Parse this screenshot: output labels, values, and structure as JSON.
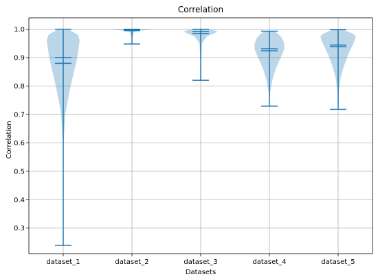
{
  "chart_data": {
    "type": "violin",
    "title": "Correlation",
    "xlabel": "Datasets",
    "ylabel": "Correlation",
    "ylim": [
      0.21,
      1.04
    ],
    "yticks": [
      0.3,
      0.4,
      0.5,
      0.6,
      0.7,
      0.8,
      0.9,
      1.0
    ],
    "ytick_labels": [
      "0.3",
      "0.4",
      "0.5",
      "0.6",
      "0.7",
      "0.8",
      "0.9",
      "1.0"
    ],
    "grid": true,
    "body_color": "#1f77b4",
    "line_color": "#1f77b4",
    "categories": [
      "dataset_1",
      "dataset_2",
      "dataset_3",
      "dataset_4",
      "dataset_5"
    ],
    "series": [
      {
        "min": 0.239,
        "max": 1.0,
        "mean": 0.88,
        "median": 0.9,
        "density": [
          [
            0.239,
            0.0
          ],
          [
            0.45,
            0.005
          ],
          [
            0.6,
            0.02
          ],
          [
            0.7,
            0.1
          ],
          [
            0.75,
            0.22
          ],
          [
            0.8,
            0.36
          ],
          [
            0.85,
            0.52
          ],
          [
            0.88,
            0.62
          ],
          [
            0.9,
            0.68
          ],
          [
            0.93,
            0.74
          ],
          [
            0.96,
            0.8
          ],
          [
            0.98,
            0.72
          ],
          [
            1.0,
            0.25
          ]
        ]
      },
      {
        "min": 0.948,
        "max": 1.0,
        "mean": 0.995,
        "median": 0.998,
        "density": [
          [
            0.948,
            0.0
          ],
          [
            0.97,
            0.02
          ],
          [
            0.99,
            0.1
          ],
          [
            0.995,
            0.4
          ],
          [
            0.998,
            1.0
          ],
          [
            1.0,
            0.3
          ]
        ]
      },
      {
        "min": 0.82,
        "max": 1.0,
        "mean": 0.985,
        "median": 0.992,
        "density": [
          [
            0.82,
            0.0
          ],
          [
            0.9,
            0.02
          ],
          [
            0.95,
            0.06
          ],
          [
            0.975,
            0.3
          ],
          [
            0.985,
            0.65
          ],
          [
            0.992,
            0.82
          ],
          [
            0.997,
            0.6
          ],
          [
            1.0,
            0.2
          ]
        ]
      },
      {
        "min": 0.729,
        "max": 0.993,
        "mean": 0.924,
        "median": 0.931,
        "density": [
          [
            0.729,
            0.0
          ],
          [
            0.78,
            0.04
          ],
          [
            0.82,
            0.14
          ],
          [
            0.86,
            0.3
          ],
          [
            0.9,
            0.55
          ],
          [
            0.93,
            0.72
          ],
          [
            0.95,
            0.72
          ],
          [
            0.97,
            0.6
          ],
          [
            0.985,
            0.4
          ],
          [
            0.993,
            0.2
          ]
        ]
      },
      {
        "min": 0.718,
        "max": 0.998,
        "mean": 0.938,
        "median": 0.944,
        "density": [
          [
            0.718,
            0.0
          ],
          [
            0.78,
            0.03
          ],
          [
            0.83,
            0.12
          ],
          [
            0.87,
            0.28
          ],
          [
            0.91,
            0.48
          ],
          [
            0.94,
            0.68
          ],
          [
            0.96,
            0.8
          ],
          [
            0.975,
            0.86
          ],
          [
            0.985,
            0.7
          ],
          [
            0.995,
            0.35
          ],
          [
            0.998,
            0.2
          ]
        ]
      }
    ]
  }
}
